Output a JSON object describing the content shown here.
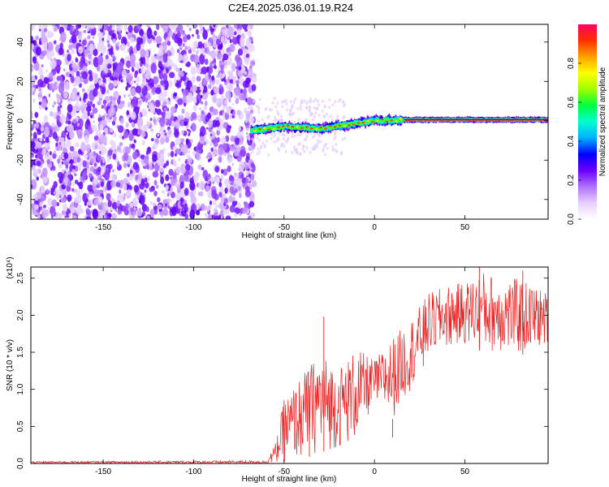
{
  "figure": {
    "title": "C2E4.2025.036.01.19.R24"
  },
  "chart_data": [
    {
      "type": "heatmap",
      "xlabel": "Height of straight line (km)",
      "ylabel": "Frequency (Hz)",
      "xlim": [
        -190,
        96
      ],
      "ylim": [
        -50,
        49
      ],
      "x_ticks": [
        -150,
        -100,
        -50,
        0,
        50
      ],
      "y_ticks": [
        -40,
        -20,
        0,
        20,
        40
      ],
      "colorbar": {
        "label": "Normalized spectral amplitude",
        "range": [
          0,
          1
        ],
        "ticks": [
          0.0,
          0.2,
          0.4,
          0.6,
          0.8
        ],
        "tick_labels": [
          "0.0",
          "0.2",
          "0.4",
          "0.6",
          "0.8"
        ],
        "colors": [
          "#ffffff",
          "#e8d0ff",
          "#b070ff",
          "#6a00ff",
          "#0000ff",
          "#00b0ff",
          "#00ffd0",
          "#00ff40",
          "#a0ff00",
          "#ffff00",
          "#ffa000",
          "#ff3000",
          "#ff0060"
        ]
      },
      "noise_region": {
        "x_start": -190,
        "x_end": -70,
        "y_start": -50,
        "y_end": 49
      },
      "signal_ridge": [
        {
          "x": -68,
          "freq": -5
        },
        {
          "x": -50,
          "freq": -3
        },
        {
          "x": -30,
          "freq": -4
        },
        {
          "x": -15,
          "freq": -2
        },
        {
          "x": 0,
          "freq": 0
        },
        {
          "x": 20,
          "freq": 0.5
        },
        {
          "x": 50,
          "freq": 0.5
        },
        {
          "x": 96,
          "freq": 0.5
        }
      ]
    },
    {
      "type": "line",
      "xlabel": "Height of straight line (km)",
      "ylabel": "SNR (10 * v/v)",
      "y_exponent": "(x10⁴)",
      "xlim": [
        -190,
        96
      ],
      "ylim": [
        0,
        2.65
      ],
      "x_ticks": [
        -150,
        -100,
        -50,
        0,
        50
      ],
      "y_ticks": [
        0.0,
        0.5,
        1.0,
        1.5,
        2.0,
        2.5
      ],
      "y_tick_labels": [
        "0.0",
        "0.5",
        "1.0",
        "1.5",
        "2.0",
        "2.5"
      ],
      "color": "#ee2222",
      "series": [
        {
          "envelope": [
            {
              "x": -190,
              "low": 0.0,
              "high": 0.03
            },
            {
              "x": -60,
              "low": 0.0,
              "high": 0.04
            },
            {
              "x": -55,
              "low": 0.0,
              "high": 0.25
            },
            {
              "x": -50,
              "low": 0.02,
              "high": 0.85
            },
            {
              "x": -40,
              "low": 0.05,
              "high": 1.2
            },
            {
              "x": -30,
              "low": 0.15,
              "high": 1.5
            },
            {
              "x": -20,
              "low": 0.2,
              "high": 1.3
            },
            {
              "x": -10,
              "low": 0.3,
              "high": 1.55
            },
            {
              "x": 0,
              "low": 0.8,
              "high": 1.4
            },
            {
              "x": 10,
              "low": 0.6,
              "high": 1.7
            },
            {
              "x": 20,
              "low": 1.0,
              "high": 1.95
            },
            {
              "x": 30,
              "low": 1.45,
              "high": 2.3
            },
            {
              "x": 40,
              "low": 1.55,
              "high": 2.4
            },
            {
              "x": 50,
              "low": 1.6,
              "high": 2.45
            },
            {
              "x": 60,
              "low": 1.5,
              "high": 2.6
            },
            {
              "x": 70,
              "low": 1.5,
              "high": 2.5
            },
            {
              "x": 80,
              "low": 1.45,
              "high": 2.5
            },
            {
              "x": 96,
              "low": 1.6,
              "high": 2.3
            }
          ],
          "spikes": [
            {
              "x": -50,
              "y": 0.85
            },
            {
              "x": -28,
              "y": 1.98
            },
            {
              "x": -36,
              "y": 1.05
            },
            {
              "x": 10,
              "y": 0.35
            },
            {
              "x": 27,
              "y": 2.0
            },
            {
              "x": 58,
              "y": 2.65
            },
            {
              "x": 82,
              "y": 2.6
            }
          ]
        }
      ]
    }
  ]
}
